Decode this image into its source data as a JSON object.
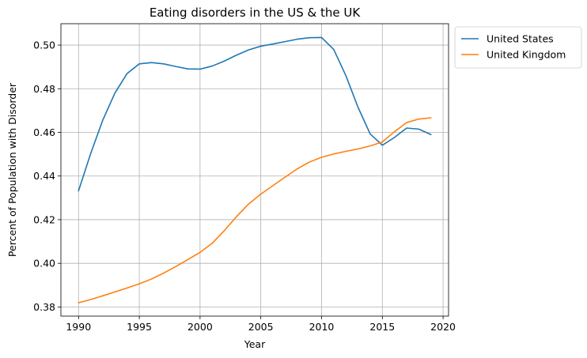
{
  "chart_data": {
    "type": "line",
    "title": "Eating disorders in the US & the UK",
    "xlabel": "Year",
    "ylabel": "Percent of Population with Disorder",
    "xlim": [
      1988.55,
      2020.45
    ],
    "ylim": [
      0.3758,
      0.5098
    ],
    "xticks": [
      1990,
      1995,
      2000,
      2005,
      2010,
      2015,
      2020
    ],
    "yticks": [
      0.38,
      0.4,
      0.42,
      0.44,
      0.46,
      0.48,
      0.5
    ],
    "grid": true,
    "legend_position": "outside-top-right",
    "x": [
      1990,
      1991,
      1992,
      1993,
      1994,
      1995,
      1996,
      1997,
      1998,
      1999,
      2000,
      2001,
      2002,
      2003,
      2004,
      2005,
      2006,
      2007,
      2008,
      2009,
      2010,
      2011,
      2012,
      2013,
      2014,
      2015,
      2016,
      2017,
      2018,
      2019
    ],
    "series": [
      {
        "name": "United States",
        "color": "#1f77b4",
        "values": [
          0.4332,
          0.4503,
          0.4657,
          0.4781,
          0.487,
          0.4914,
          0.492,
          0.4914,
          0.4902,
          0.4891,
          0.489,
          0.4904,
          0.4927,
          0.4954,
          0.4978,
          0.4995,
          0.5005,
          0.5016,
          0.5027,
          0.5034,
          0.5035,
          0.498,
          0.486,
          0.4715,
          0.4593,
          0.4541,
          0.4577,
          0.462,
          0.4615,
          0.459
        ]
      },
      {
        "name": "United Kingdom",
        "color": "#ff7f0e",
        "values": [
          0.3819,
          0.3834,
          0.3851,
          0.3869,
          0.3887,
          0.3906,
          0.3928,
          0.3955,
          0.3985,
          0.4017,
          0.405,
          0.4092,
          0.415,
          0.4214,
          0.4272,
          0.4317,
          0.4356,
          0.4395,
          0.4433,
          0.4464,
          0.4486,
          0.4501,
          0.4513,
          0.4524,
          0.4538,
          0.4556,
          0.4603,
          0.4645,
          0.4661,
          0.4667
        ]
      }
    ]
  }
}
